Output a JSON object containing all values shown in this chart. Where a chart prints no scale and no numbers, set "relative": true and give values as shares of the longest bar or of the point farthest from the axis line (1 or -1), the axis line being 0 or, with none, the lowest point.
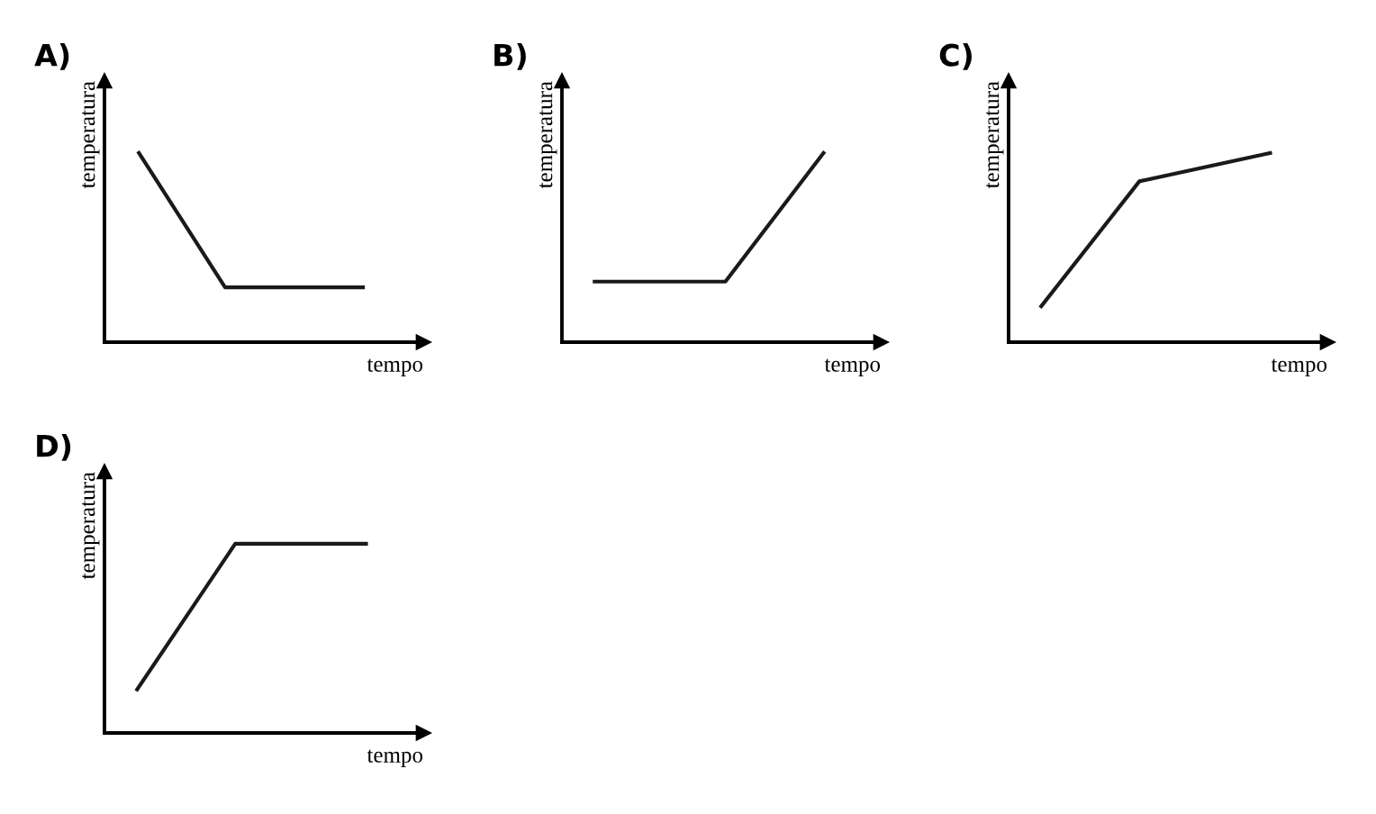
{
  "chart_data": [
    {
      "type": "line",
      "title": "A)",
      "xlabel": "tempo",
      "ylabel": "temperatura",
      "relative": true,
      "marker": "none",
      "line_style": "solid",
      "categories": [
        null,
        null,
        null,
        null,
        null,
        null,
        null,
        null,
        null,
        null,
        null,
        null,
        null,
        null
      ],
      "series": [
        {
          "color": "#1a1a1a",
          "values": [
            1,
            null,
            null,
            null,
            null,
            0.29,
            null,
            null,
            null,
            null,
            null,
            null,
            null,
            0.29
          ]
        }
      ]
    },
    {
      "type": "line",
      "title": "B)",
      "xlabel": "tempo",
      "ylabel": "temperatura",
      "relative": true,
      "marker": "none",
      "line_style": "solid",
      "categories": [
        null,
        null,
        null,
        null,
        null,
        null,
        null,
        null,
        null,
        null,
        null,
        null,
        null,
        null,
        null
      ],
      "series": [
        {
          "color": "#1a1a1a",
          "values": [
            0.32,
            null,
            null,
            null,
            null,
            null,
            null,
            null,
            0.32,
            null,
            null,
            null,
            null,
            null,
            1
          ]
        }
      ]
    },
    {
      "type": "line",
      "title": "C)",
      "xlabel": "tempo",
      "ylabel": "temperatura",
      "relative": true,
      "marker": "none",
      "line_style": "solid",
      "categories": [
        null,
        null,
        null,
        null,
        null,
        null,
        null,
        null,
        null,
        null,
        null,
        null,
        null,
        null,
        null
      ],
      "series": [
        {
          "color": "#1a1a1a",
          "values": [
            0.19,
            null,
            null,
            null,
            null,
            null,
            0.85,
            null,
            null,
            null,
            null,
            null,
            null,
            null,
            1
          ]
        }
      ]
    },
    {
      "type": "line",
      "title": "D)",
      "xlabel": "tempo",
      "ylabel": "temperatura",
      "relative": true,
      "marker": "none",
      "line_style": "solid",
      "categories": [
        null,
        null,
        null,
        null,
        null,
        null,
        null,
        null,
        null,
        null,
        null,
        null,
        null,
        null,
        null
      ],
      "series": [
        {
          "color": "#1a1a1a",
          "values": [
            0.23,
            null,
            null,
            null,
            null,
            null,
            1,
            null,
            null,
            null,
            null,
            null,
            null,
            null,
            1
          ]
        }
      ]
    }
  ]
}
